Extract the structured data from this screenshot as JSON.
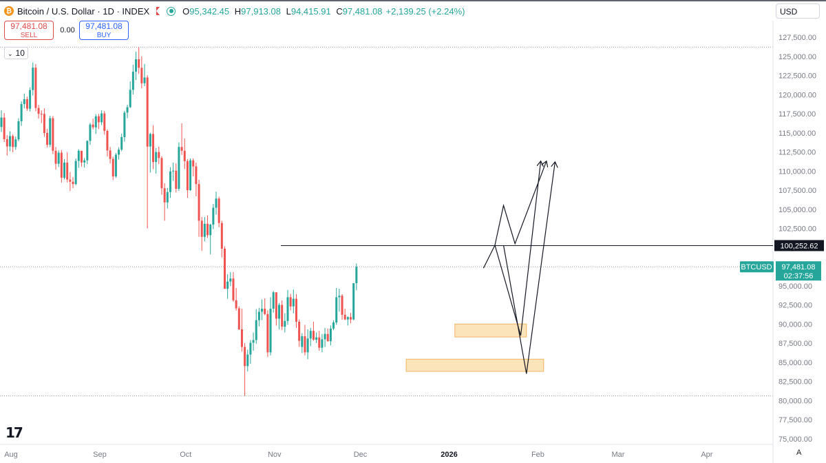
{
  "header": {
    "coin_icon": "bitcoin-icon",
    "coin_glyph": "₿",
    "symbol": "Bitcoin / U.S. Dollar · 1D · INDEX",
    "open_label": "O",
    "open": "95,342.45",
    "high_label": "H",
    "high": "97,913.08",
    "low_label": "L",
    "low": "94,415.91",
    "close_label": "C",
    "close": "97,481.08",
    "change": "+2,139.25 (+2.24%)"
  },
  "trade": {
    "sell_price": "97,481.08",
    "sell_label": "SELL",
    "spread": "0.00",
    "buy_price": "97,481.08",
    "buy_label": "BUY"
  },
  "volume_toggle": {
    "icon": "chevron-down-icon",
    "value": "10"
  },
  "currency": "USD",
  "mode_button": "A",
  "colors": {
    "up": "#26a69a",
    "down": "#ef5350",
    "zone_fill": "#fbe0b3",
    "zone_stroke": "#f3b565",
    "price_line": "#131722"
  },
  "chart_data": {
    "type": "candlestick",
    "ylim": [
      73500,
      129000
    ],
    "y_ticks": [
      "75,000.00",
      "77,500.00",
      "80,000.00",
      "82,500.00",
      "85,000.00",
      "87,500.00",
      "90,000.00",
      "92,500.00",
      "95,000.00",
      "97,500.00",
      "100,000.00",
      "102,500.00",
      "105,000.00",
      "107,500.00",
      "110,000.00",
      "112,500.00",
      "115,000.00",
      "117,500.00",
      "120,000.00",
      "122,500.00",
      "125,000.00",
      "127,500.00"
    ],
    "x_ticks": [
      "Aug",
      "Sep",
      "Oct",
      "Nov",
      "Dec",
      "2026",
      "Feb",
      "Mar",
      "Apr"
    ],
    "candles": [
      [
        115761,
        117938,
        115111,
        116994
      ],
      [
        116994,
        117597,
        113806,
        114162
      ],
      [
        114162,
        114689,
        112034,
        113211
      ],
      [
        113211,
        115198,
        112587,
        114578
      ],
      [
        114578,
        114799,
        112458,
        113149
      ],
      [
        113149,
        114516,
        112777,
        114143
      ],
      [
        114143,
        116904,
        113901,
        116508
      ],
      [
        116508,
        119125,
        115911,
        118758
      ],
      [
        118758,
        120132,
        118190,
        119391
      ],
      [
        119391,
        119726,
        117877,
        118152
      ],
      [
        118152,
        120949,
        117780,
        120589
      ],
      [
        120589,
        124204,
        119865,
        123518
      ],
      [
        123518,
        124003,
        117814,
        118244
      ],
      [
        118244,
        118657,
        116837,
        117486
      ],
      [
        117486,
        117937,
        116276,
        117480
      ],
      [
        117480,
        118205,
        114497,
        114974
      ],
      [
        114974,
        115522,
        113069,
        113431
      ],
      [
        113431,
        117235,
        113125,
        116914
      ],
      [
        116914,
        117200,
        112210,
        112650
      ],
      [
        112650,
        113150,
        110200,
        110950
      ],
      [
        110950,
        112700,
        110540,
        112400
      ],
      [
        112400,
        112750,
        108500,
        109130
      ],
      [
        109130,
        111550,
        108900,
        111100
      ],
      [
        111100,
        112470,
        108510,
        108890
      ],
      [
        108890,
        109850,
        107380,
        108600
      ],
      [
        108600,
        109200,
        107760,
        108300
      ],
      [
        108300,
        111640,
        108150,
        111320
      ],
      [
        111320,
        112850,
        110420,
        112650
      ],
      [
        112650,
        112500,
        110570,
        111120
      ],
      [
        111120,
        111700,
        110450,
        111400
      ],
      [
        111400,
        114010,
        110900,
        113940
      ],
      [
        113940,
        116300,
        113420,
        116080
      ],
      [
        116080,
        116850,
        115450,
        115720
      ],
      [
        115720,
        117440,
        114850,
        117150
      ],
      [
        117150,
        117480,
        115480,
        116380
      ],
      [
        116380,
        117950,
        116010,
        117540
      ],
      [
        117540,
        117850,
        114750,
        115250
      ],
      [
        115250,
        115450,
        111900,
        112700
      ],
      [
        112700,
        113150,
        110980,
        111590
      ],
      [
        111590,
        111880,
        108810,
        109300
      ],
      [
        109300,
        112380,
        109100,
        112140
      ],
      [
        112140,
        113100,
        111500,
        112800
      ],
      [
        112800,
        114900,
        112600,
        114440
      ],
      [
        114440,
        117880,
        113840,
        117640
      ],
      [
        117640,
        118680,
        116900,
        118350
      ],
      [
        118350,
        121700,
        118250,
        120620
      ],
      [
        120620,
        123900,
        120010,
        122990
      ],
      [
        122990,
        125600,
        121880,
        124610
      ],
      [
        124610,
        126200,
        122700,
        123500
      ],
      [
        123500,
        125000,
        120800,
        121480
      ],
      [
        121480,
        124000,
        121100,
        122230
      ],
      [
        122230,
        122550,
        102500,
        113200
      ],
      [
        113200,
        115000,
        109800,
        114850
      ],
      [
        114850,
        115980,
        110250,
        111180
      ],
      [
        111180,
        113000,
        109650,
        112480
      ],
      [
        112480,
        113200,
        110900,
        111700
      ],
      [
        111700,
        111950,
        106900,
        107750
      ],
      [
        107750,
        108400,
        103500,
        105900
      ],
      [
        105900,
        107800,
        105100,
        107250
      ],
      [
        107250,
        110500,
        106500,
        109950
      ],
      [
        109950,
        111100,
        108700,
        110050
      ],
      [
        110050,
        111000,
        107200,
        107680
      ],
      [
        107680,
        113750,
        107400,
        113150
      ],
      [
        113150,
        116250,
        112100,
        112650
      ],
      [
        112650,
        114250,
        110250,
        111300
      ],
      [
        111300,
        111550,
        106500,
        107500
      ],
      [
        107500,
        111650,
        107400,
        111400
      ],
      [
        111400,
        111650,
        109300,
        110600
      ],
      [
        110600,
        111100,
        106700,
        108300
      ],
      [
        108300,
        108850,
        101400,
        103500
      ],
      [
        103500,
        104000,
        99550,
        101400
      ],
      [
        101400,
        104000,
        100800,
        103100
      ],
      [
        103100,
        104200,
        101250,
        101620
      ],
      [
        101620,
        103100,
        99100,
        103000
      ],
      [
        103000,
        105700,
        102400,
        105200
      ],
      [
        105200,
        107300,
        104300,
        106400
      ],
      [
        106400,
        106650,
        102650,
        103200
      ],
      [
        103200,
        103500,
        98700,
        99850
      ],
      [
        99850,
        100150,
        94700,
        94600
      ],
      [
        94600,
        96500,
        93300,
        95550
      ],
      [
        95550,
        96800,
        94950,
        95950
      ],
      [
        95950,
        96800,
        92900,
        93100
      ],
      [
        93100,
        94700,
        91750,
        92050
      ],
      [
        92050,
        92300,
        89200,
        89300
      ],
      [
        89300,
        92000,
        86400,
        87000
      ],
      [
        87000,
        87500,
        80600,
        84500
      ],
      [
        84500,
        86650,
        83800,
        86000
      ],
      [
        86000,
        87900,
        84800,
        87550
      ],
      [
        87550,
        88900,
        86500,
        87900
      ],
      [
        87900,
        91950,
        87400,
        90500
      ],
      [
        90500,
        92100,
        89700,
        91600
      ],
      [
        91600,
        93200,
        90500,
        92000
      ],
      [
        92000,
        93350,
        91150,
        91300
      ],
      [
        91300,
        91800,
        85700,
        86300
      ],
      [
        86300,
        93500,
        85900,
        92000
      ],
      [
        92000,
        94300,
        91500,
        94150
      ],
      [
        94150,
        94100,
        89800,
        90700
      ],
      [
        90700,
        92750,
        89300,
        92500
      ],
      [
        92500,
        93100,
        89200,
        89650
      ],
      [
        89650,
        91400,
        88900,
        90400
      ],
      [
        90400,
        94450,
        89900,
        93500
      ],
      [
        93500,
        93950,
        91800,
        92300
      ],
      [
        92300,
        94500,
        91400,
        93300
      ],
      [
        93300,
        93900,
        89500,
        90300
      ],
      [
        90300,
        90600,
        87000,
        87800
      ],
      [
        87000,
        88800,
        86200,
        88400
      ],
      [
        88400,
        89900,
        85900,
        86300
      ],
      [
        86300,
        89300,
        85400,
        88100
      ],
      [
        88100,
        89500,
        87100,
        89100
      ],
      [
        89100,
        90300,
        87800,
        87950
      ],
      [
        87950,
        88900,
        87500,
        88250
      ],
      [
        88250,
        89100,
        86500,
        86900
      ],
      [
        86900,
        88700,
        86300,
        88000
      ],
      [
        88000,
        89500,
        87000,
        88700
      ],
      [
        88700,
        89400,
        87700,
        87750
      ],
      [
        87750,
        89800,
        87200,
        89400
      ],
      [
        89400,
        90500,
        89200,
        90200
      ],
      [
        90200,
        94700,
        89900,
        93500
      ],
      [
        93500,
        94600,
        91600,
        93700
      ],
      [
        93700,
        93900,
        90550,
        91200
      ],
      [
        91200,
        92000,
        90500,
        90600
      ],
      [
        90600,
        91000,
        89800,
        90900
      ],
      [
        90900,
        91450,
        90100,
        90600
      ],
      [
        90600,
        95100,
        90500,
        95342.45
      ],
      [
        95342.45,
        97913.08,
        94415.91,
        97481.08
      ]
    ],
    "resistance_level": "100,252.62",
    "last_price_label": "BTCUSD",
    "last_price": "97,481.08",
    "countdown": "02:37:56",
    "zones": [
      {
        "x_start": "2026-01-03",
        "x_end": "2026-01-28",
        "y_low": 88300,
        "y_high": 90000
      },
      {
        "x_start": "2025-12-17",
        "x_end": "2026-02-03",
        "y_low": 83800,
        "y_high": 85400
      }
    ],
    "projection_paths": [
      [
        [
          "2026-01-13",
          97300
        ],
        [
          "2026-01-17",
          100300
        ],
        [
          "2026-01-26",
          88500
        ],
        [
          "2026-02-02",
          111300
        ]
      ],
      [
        [
          "2026-01-17",
          100300
        ],
        [
          "2026-01-20",
          105500
        ],
        [
          "2026-01-24",
          100500
        ],
        [
          "2026-02-04",
          111300
        ]
      ],
      [
        [
          "2026-01-20",
          100300
        ],
        [
          "2026-01-28",
          83500
        ],
        [
          "2026-02-07",
          111200
        ]
      ]
    ]
  }
}
